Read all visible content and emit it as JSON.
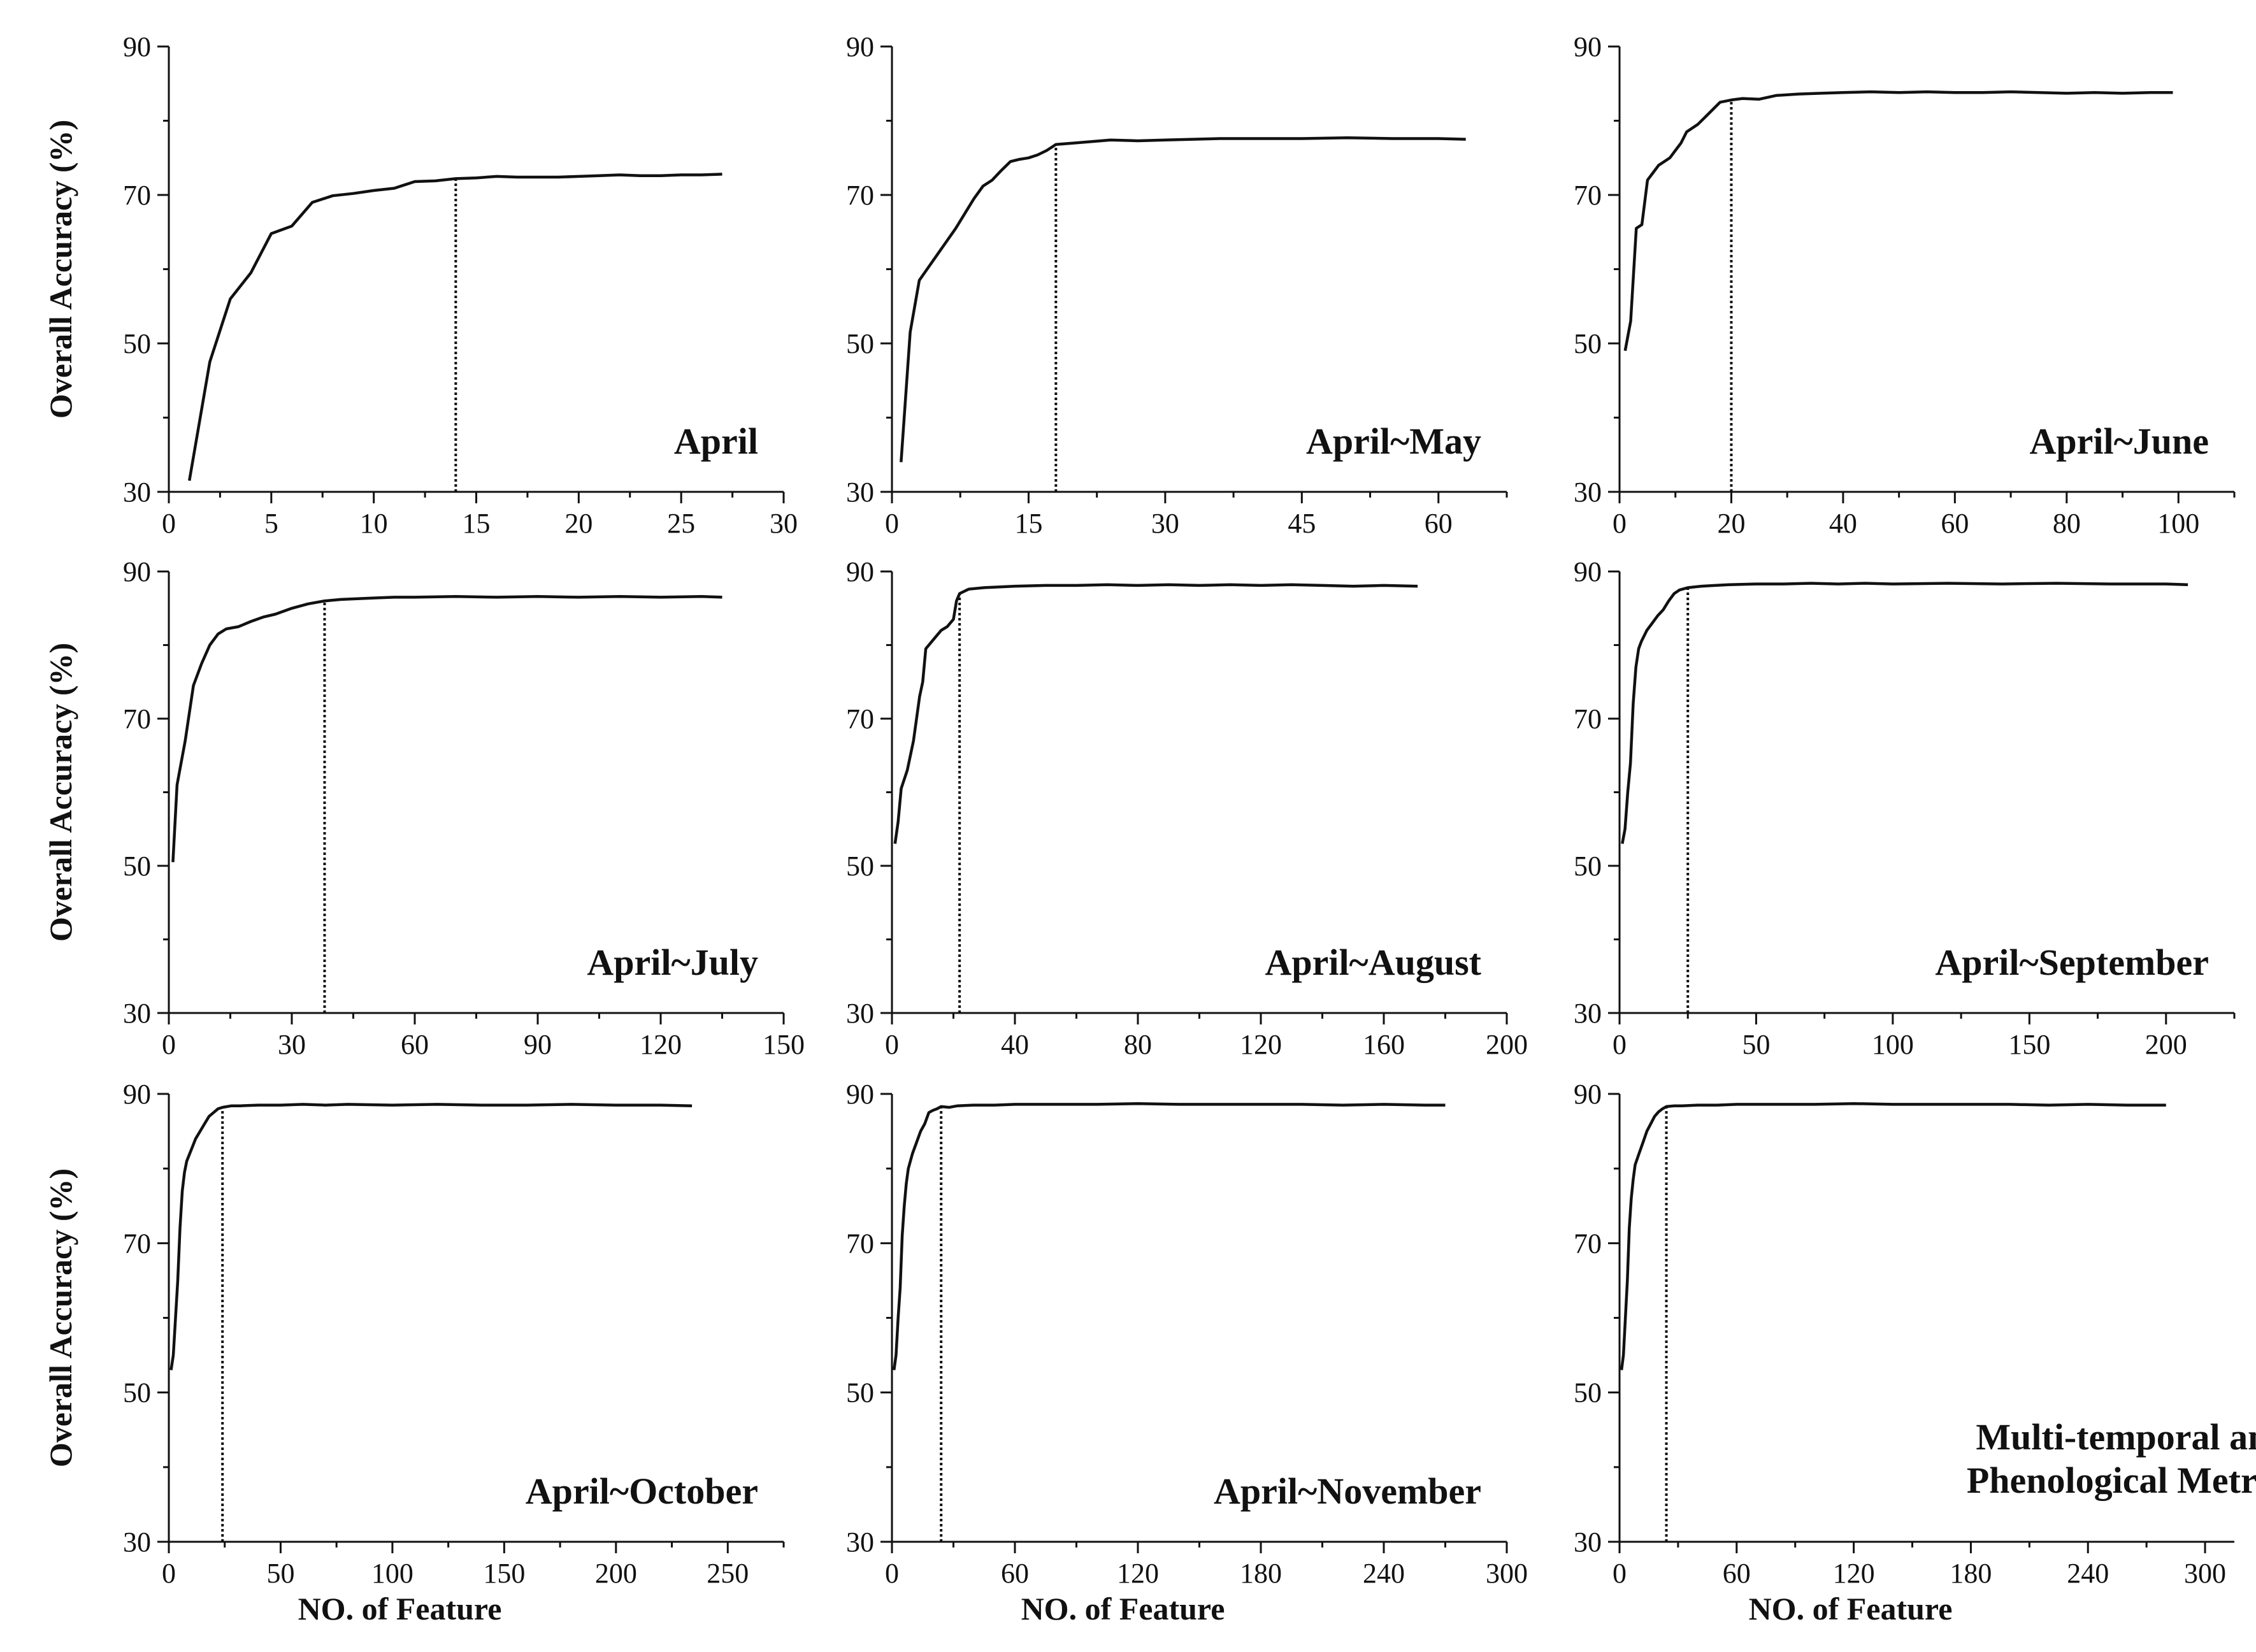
{
  "chart_data": [
    {
      "type": "line",
      "label": "April",
      "ylabel": "Overall Accuracy (%)",
      "xlabel": "",
      "xlim": [
        0,
        30
      ],
      "ylim": [
        30,
        90
      ],
      "xticks": [
        0,
        5,
        10,
        15,
        20,
        25,
        30
      ],
      "yticks": [
        30,
        50,
        70,
        90
      ],
      "selected_feature": 14,
      "line_color": "#111111",
      "x": [
        1,
        2,
        3,
        4,
        5,
        6,
        7,
        8,
        9,
        10,
        11,
        12,
        13,
        14,
        15,
        16,
        17,
        18,
        19,
        20,
        21,
        22,
        23,
        24,
        25,
        26,
        27
      ],
      "y": [
        31.5,
        47.5,
        56,
        59.5,
        64.8,
        65.8,
        69,
        69.9,
        70.2,
        70.6,
        70.9,
        71.8,
        71.9,
        72.2,
        72.3,
        72.5,
        72.4,
        72.4,
        72.4,
        72.5,
        72.6,
        72.7,
        72.6,
        72.6,
        72.7,
        72.7,
        72.8
      ]
    },
    {
      "type": "line",
      "label": "April~May",
      "ylabel": "",
      "xlabel": "",
      "xlim": [
        0,
        67.5
      ],
      "ylim": [
        30,
        90
      ],
      "xticks": [
        0,
        15,
        30,
        45,
        60
      ],
      "yticks": [
        30,
        50,
        70,
        90
      ],
      "selected_feature": 18,
      "line_color": "#111111",
      "x": [
        1,
        2,
        3,
        5,
        7,
        9,
        10,
        11,
        12,
        13,
        14,
        15,
        16,
        17,
        18,
        20,
        22,
        24,
        27,
        30,
        33,
        36,
        40,
        45,
        50,
        55,
        60,
        63
      ],
      "y": [
        34,
        51.5,
        58.5,
        62,
        65.5,
        69.5,
        71.2,
        72,
        73.3,
        74.5,
        74.8,
        75,
        75.4,
        76,
        76.8,
        77,
        77.2,
        77.4,
        77.3,
        77.4,
        77.5,
        77.6,
        77.6,
        77.6,
        77.7,
        77.6,
        77.6,
        77.5
      ]
    },
    {
      "type": "line",
      "label": "April~June",
      "ylabel": "",
      "xlabel": "",
      "xlim": [
        0,
        110
      ],
      "ylim": [
        30,
        90
      ],
      "xticks": [
        0,
        20,
        40,
        60,
        80,
        100
      ],
      "yticks": [
        30,
        50,
        70,
        90
      ],
      "selected_feature": 20,
      "line_color": "#111111",
      "x": [
        1,
        2,
        3,
        4,
        5,
        6,
        7,
        8,
        9,
        10,
        11,
        12,
        14,
        16,
        18,
        20,
        22,
        25,
        28,
        32,
        36,
        40,
        45,
        50,
        55,
        60,
        65,
        70,
        75,
        80,
        85,
        90,
        95,
        99
      ],
      "y": [
        49,
        53,
        65.5,
        66,
        72,
        73,
        74,
        74.5,
        75,
        76,
        77,
        78.5,
        79.5,
        81,
        82.5,
        82.8,
        83,
        82.9,
        83.4,
        83.6,
        83.7,
        83.8,
        83.9,
        83.8,
        83.9,
        83.8,
        83.8,
        83.9,
        83.8,
        83.7,
        83.8,
        83.7,
        83.8,
        83.8
      ]
    },
    {
      "type": "line",
      "label": "April~July",
      "ylabel": "Overall Accuracy (%)",
      "xlabel": "",
      "xlim": [
        0,
        150
      ],
      "ylim": [
        30,
        90
      ],
      "xticks": [
        0,
        30,
        60,
        90,
        120,
        150
      ],
      "yticks": [
        30,
        50,
        70,
        90
      ],
      "selected_feature": 38,
      "line_color": "#111111",
      "x": [
        1,
        2,
        4,
        6,
        8,
        10,
        12,
        14,
        17,
        20,
        23,
        26,
        30,
        34,
        38,
        42,
        46,
        50,
        55,
        60,
        70,
        80,
        90,
        100,
        110,
        120,
        130,
        135
      ],
      "y": [
        50.5,
        61,
        67,
        74.5,
        77.5,
        80,
        81.5,
        82.2,
        82.5,
        83.2,
        83.8,
        84.2,
        85,
        85.6,
        86,
        86.2,
        86.3,
        86.4,
        86.5,
        86.5,
        86.6,
        86.5,
        86.6,
        86.5,
        86.6,
        86.5,
        86.6,
        86.5
      ]
    },
    {
      "type": "line",
      "label": "April~August",
      "ylabel": "",
      "xlabel": "",
      "xlim": [
        0,
        200
      ],
      "ylim": [
        30,
        90
      ],
      "xticks": [
        0,
        40,
        80,
        120,
        160,
        200
      ],
      "yticks": [
        30,
        50,
        70,
        90
      ],
      "selected_feature": 22,
      "line_color": "#111111",
      "x": [
        1,
        2,
        3,
        5,
        7,
        9,
        10,
        11,
        12,
        14,
        16,
        18,
        20,
        21,
        22,
        25,
        30,
        40,
        50,
        60,
        70,
        80,
        90,
        100,
        110,
        120,
        130,
        140,
        150,
        160,
        171
      ],
      "y": [
        53,
        56,
        60.5,
        63,
        67,
        73,
        75,
        79.5,
        80,
        81,
        82,
        82.5,
        83.5,
        86,
        87,
        87.6,
        87.8,
        88,
        88.1,
        88.1,
        88.2,
        88.1,
        88.2,
        88.1,
        88.2,
        88.1,
        88.2,
        88.1,
        88,
        88.1,
        88
      ]
    },
    {
      "type": "line",
      "label": "April~September",
      "ylabel": "",
      "xlabel": "",
      "xlim": [
        0,
        225
      ],
      "ylim": [
        30,
        90
      ],
      "xticks": [
        0,
        50,
        100,
        150,
        200
      ],
      "yticks": [
        30,
        50,
        70,
        90
      ],
      "selected_feature": 25,
      "line_color": "#111111",
      "x": [
        1,
        2,
        3,
        4,
        5,
        6,
        7,
        8,
        10,
        12,
        14,
        16,
        18,
        20,
        22,
        25,
        30,
        35,
        40,
        50,
        60,
        70,
        80,
        90,
        100,
        120,
        140,
        160,
        180,
        200,
        208
      ],
      "y": [
        53,
        55,
        60,
        64,
        72,
        77,
        79.5,
        80.5,
        82,
        83,
        84,
        84.8,
        86,
        87,
        87.5,
        87.8,
        88,
        88.1,
        88.2,
        88.3,
        88.3,
        88.4,
        88.3,
        88.4,
        88.3,
        88.4,
        88.3,
        88.4,
        88.3,
        88.3,
        88.2
      ]
    },
    {
      "type": "line",
      "label": "April~October",
      "ylabel": "Overall Accuracy (%)",
      "xlabel": "NO. of Feature",
      "xlim": [
        0,
        275
      ],
      "ylim": [
        30,
        90
      ],
      "xticks": [
        0,
        50,
        100,
        150,
        200,
        250
      ],
      "yticks": [
        30,
        50,
        70,
        90
      ],
      "selected_feature": 24,
      "line_color": "#111111",
      "x": [
        1,
        2,
        3,
        4,
        5,
        6,
        7,
        8,
        10,
        12,
        14,
        16,
        18,
        20,
        22,
        24,
        28,
        32,
        40,
        50,
        60,
        70,
        80,
        100,
        120,
        140,
        160,
        180,
        200,
        220,
        234
      ],
      "y": [
        53,
        55,
        60,
        65,
        72,
        77,
        79.5,
        81,
        82.5,
        84,
        85,
        86,
        87,
        87.5,
        88,
        88.2,
        88.4,
        88.4,
        88.5,
        88.5,
        88.6,
        88.5,
        88.6,
        88.5,
        88.6,
        88.5,
        88.5,
        88.6,
        88.5,
        88.5,
        88.4
      ]
    },
    {
      "type": "line",
      "label": "April~November",
      "ylabel": "",
      "xlabel": "NO. of Feature",
      "xlim": [
        0,
        300
      ],
      "ylim": [
        30,
        90
      ],
      "xticks": [
        0,
        60,
        120,
        180,
        240,
        300
      ],
      "yticks": [
        30,
        50,
        70,
        90
      ],
      "selected_feature": 24,
      "line_color": "#111111",
      "x": [
        1,
        2,
        3,
        4,
        5,
        6,
        7,
        8,
        10,
        12,
        14,
        16,
        18,
        20,
        22,
        24,
        28,
        32,
        40,
        50,
        60,
        80,
        100,
        120,
        140,
        160,
        180,
        200,
        220,
        240,
        260,
        270
      ],
      "y": [
        53,
        55,
        60,
        64,
        71,
        75,
        78,
        80,
        82,
        83.5,
        85,
        86,
        87.5,
        87.8,
        88,
        88.3,
        88.2,
        88.4,
        88.5,
        88.5,
        88.6,
        88.6,
        88.6,
        88.7,
        88.6,
        88.6,
        88.6,
        88.6,
        88.5,
        88.6,
        88.5,
        88.5
      ]
    },
    {
      "type": "line",
      "label": "Multi-temporal and Phenological Metrics",
      "ylabel": "",
      "xlabel": "NO. of Feature",
      "xlim": [
        0,
        315
      ],
      "ylim": [
        30,
        90
      ],
      "xticks": [
        0,
        60,
        120,
        180,
        240,
        300
      ],
      "yticks": [
        30,
        50,
        70,
        90
      ],
      "selected_feature": 24,
      "line_color": "#111111",
      "x": [
        1,
        2,
        3,
        4,
        5,
        6,
        7,
        8,
        10,
        12,
        14,
        16,
        18,
        20,
        22,
        24,
        28,
        32,
        40,
        50,
        60,
        80,
        100,
        120,
        140,
        160,
        180,
        200,
        220,
        240,
        260,
        280
      ],
      "y": [
        53,
        55,
        60,
        65,
        72,
        76,
        78.5,
        80.5,
        82,
        83.5,
        85,
        86,
        87,
        87.6,
        88,
        88.3,
        88.4,
        88.4,
        88.5,
        88.5,
        88.6,
        88.6,
        88.6,
        88.7,
        88.6,
        88.6,
        88.6,
        88.6,
        88.5,
        88.6,
        88.5,
        88.5
      ]
    }
  ]
}
